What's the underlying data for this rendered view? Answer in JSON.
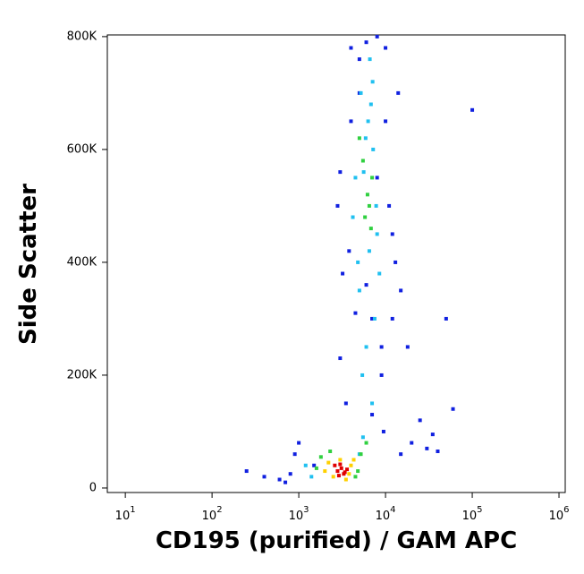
{
  "chart_data": {
    "type": "scatter",
    "x_label": "CD195 (purified) / GAM APC",
    "y_label": "Side Scatter",
    "xscale": "log",
    "xlim": [
      6.2,
      1180000
    ],
    "ylim": [
      -8000,
      803000
    ],
    "xticks": [
      {
        "value": 10,
        "label": "10",
        "exponent": "1"
      },
      {
        "value": 100,
        "label": "10",
        "exponent": "2"
      },
      {
        "value": 1000,
        "label": "10",
        "exponent": "3"
      },
      {
        "value": 10000,
        "label": "10",
        "exponent": "4"
      },
      {
        "value": 100000,
        "label": "10",
        "exponent": "5"
      },
      {
        "value": 1000000,
        "label": "10",
        "exponent": "6"
      }
    ],
    "yticks": [
      0,
      {
        "value": 200000,
        "label": "200K"
      },
      {
        "value": 400000,
        "label": "400K"
      },
      {
        "value": 600000,
        "label": "600K"
      },
      {
        "value": 800000,
        "label": "800K"
      }
    ],
    "series": [
      {
        "color": "#1020e0",
        "x": [
          250,
          400,
          600,
          800,
          900,
          1000,
          700,
          15000,
          20000,
          30000,
          40000,
          25000,
          12000,
          9000,
          10000,
          14000,
          4000,
          3500,
          3000,
          8000,
          11000,
          9500,
          13000,
          4000,
          3200,
          3800,
          6000,
          7000,
          9000,
          5000,
          8000,
          12000,
          15000,
          2800,
          1500,
          18000,
          60000,
          100000,
          50000,
          35000,
          3000,
          5000,
          10000,
          6000,
          4500,
          7000
        ],
        "values": [
          30000,
          20000,
          15000,
          25000,
          60000,
          80000,
          10000,
          60000,
          80000,
          70000,
          65000,
          120000,
          300000,
          250000,
          650000,
          700000,
          780000,
          150000,
          230000,
          800000,
          500000,
          100000,
          400000,
          650000,
          380000,
          420000,
          790000,
          300000,
          200000,
          760000,
          550000,
          450000,
          350000,
          500000,
          40000,
          250000,
          140000,
          670000,
          300000,
          95000,
          560000,
          700000,
          780000,
          360000,
          310000,
          130000
        ]
      },
      {
        "color": "#20c0f0",
        "x": [
          1200,
          1400,
          5500,
          7000,
          6000,
          7500,
          5000,
          6500,
          8000,
          4800,
          5600,
          7200,
          6300,
          5200,
          6800,
          7800,
          4500,
          5900,
          7100,
          6600,
          5400,
          8500,
          4200,
          5000
        ],
        "values": [
          40000,
          20000,
          90000,
          150000,
          250000,
          300000,
          350000,
          420000,
          450000,
          400000,
          560000,
          600000,
          650000,
          700000,
          680000,
          500000,
          550000,
          620000,
          720000,
          760000,
          200000,
          380000,
          480000,
          60000
        ]
      },
      {
        "color": "#30d040",
        "x": [
          1600,
          1800,
          4800,
          5200,
          2300,
          4500,
          6000,
          6500,
          7000,
          5800,
          6200,
          5500,
          6800,
          5000
        ],
        "values": [
          35000,
          55000,
          30000,
          60000,
          65000,
          20000,
          80000,
          500000,
          550000,
          480000,
          520000,
          580000,
          460000,
          620000
        ]
      },
      {
        "color": "#ffd000",
        "x": [
          2200,
          4000,
          2500,
          3800,
          2000,
          4300,
          3000,
          3500
        ],
        "values": [
          45000,
          40000,
          20000,
          25000,
          30000,
          50000,
          50000,
          15000
        ]
      },
      {
        "color": "#e00000",
        "x": [
          2800,
          3100,
          3400,
          2600,
          3000,
          3600,
          3300,
          2900
        ],
        "values": [
          30000,
          35000,
          28000,
          40000,
          42000,
          33000,
          25000,
          22000
        ]
      }
    ]
  }
}
